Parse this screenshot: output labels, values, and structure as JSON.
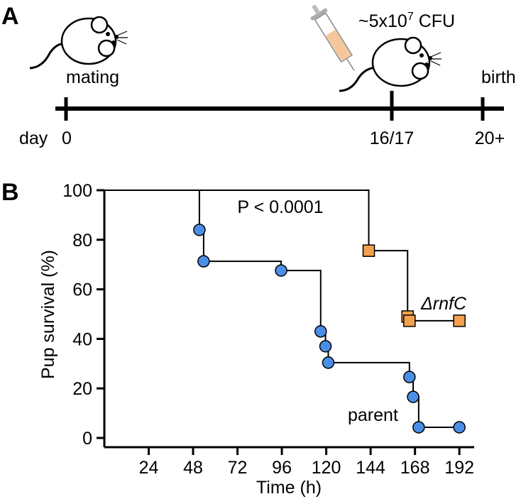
{
  "panel_labels": [
    "A",
    "B"
  ],
  "panel_a": {
    "dose": {
      "text": "~5x10",
      "exponent": "7",
      "unit": "CFU"
    },
    "day": "day",
    "ticks": [
      "0",
      "16/17",
      "20+"
    ],
    "events": [
      "mating",
      "birth"
    ]
  },
  "chart_data": {
    "type": "step",
    "y_label": "Pup survival (%)",
    "x_label": "Time (h)",
    "annotation": "P < 0.0001",
    "start": {
      "x": 0,
      "value": 100
    },
    "series": [
      {
        "name": "parent",
        "color": "#4a8fe7",
        "marker": "circle",
        "x": [
          51.4,
          53.7,
          95.6,
          117,
          119.6,
          121.1,
          165,
          167,
          170,
          192
        ],
        "values": [
          84,
          71.3,
          67.6,
          43,
          37,
          30.4,
          24.6,
          16.6,
          4.3,
          4.3
        ]
      },
      {
        "name": "ΔrnfC",
        "color": "#f4a04e",
        "marker": "square",
        "x": [
          143,
          164,
          165,
          192
        ],
        "values": [
          75.6,
          49,
          47.3,
          47.3
        ]
      }
    ],
    "xlim": [
      0,
      200
    ],
    "ylim": [
      0,
      100
    ],
    "xticks": [
      24,
      48,
      72,
      96,
      120,
      144,
      168,
      192
    ],
    "yticks": [
      0,
      20,
      40,
      60,
      80,
      100
    ]
  }
}
